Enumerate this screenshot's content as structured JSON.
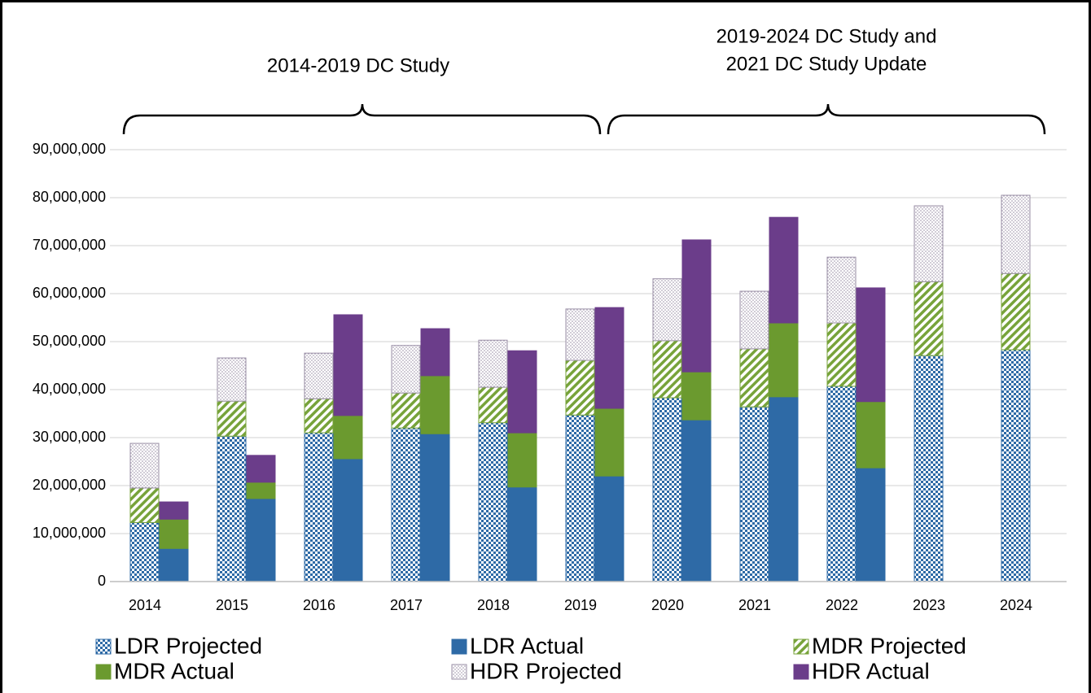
{
  "chart_data": {
    "type": "bar",
    "categories": [
      "2014",
      "2015",
      "2016",
      "2017",
      "2018",
      "2019",
      "2020",
      "2021",
      "2022",
      "2023",
      "2024"
    ],
    "series": [
      {
        "name": "LDR Projected",
        "color": "#2e6aa6",
        "pattern": "checker",
        "values": [
          12300000,
          30300000,
          31000000,
          32000000,
          33100000,
          34700000,
          38300000,
          36400000,
          40700000,
          47100000,
          48300000
        ]
      },
      {
        "name": "LDR Actual",
        "color": "#2e6aa6",
        "pattern": "solid",
        "values": [
          6900000,
          17300000,
          25600000,
          30800000,
          19700000,
          22000000,
          33700000,
          38500000,
          23700000,
          null,
          null
        ]
      },
      {
        "name": "MDR Projected",
        "color": "#77a33a",
        "pattern": "stripes",
        "values": [
          7200000,
          7300000,
          7100000,
          7300000,
          7400000,
          11400000,
          11900000,
          12100000,
          13200000,
          15400000,
          15900000
        ]
      },
      {
        "name": "MDR Actual",
        "color": "#6b9a2f",
        "pattern": "solid",
        "values": [
          6100000,
          3400000,
          9000000,
          12100000,
          11300000,
          14100000,
          10000000,
          15400000,
          13800000,
          null,
          null
        ]
      },
      {
        "name": "HDR Projected",
        "color": "#9a8fa6",
        "pattern": "dots",
        "values": [
          9300000,
          9000000,
          9500000,
          9900000,
          9800000,
          10700000,
          12900000,
          12000000,
          13700000,
          15800000,
          16300000
        ]
      },
      {
        "name": "HDR Actual",
        "color": "#6b3d8a",
        "pattern": "solid",
        "values": [
          3600000,
          5600000,
          21000000,
          9800000,
          17100000,
          21000000,
          27500000,
          22000000,
          23700000,
          null,
          null
        ]
      }
    ],
    "ylim": [
      0,
      90000000
    ],
    "yticks": [
      0,
      {
        "value": 10000000,
        "label": "10,000,000"
      },
      {
        "value": 20000000,
        "label": "20,000,000"
      },
      {
        "value": 30000000,
        "label": "30,000,000"
      },
      {
        "value": 40000000,
        "label": "40,000,000"
      },
      {
        "value": 50000000,
        "label": "50,000,000"
      },
      {
        "value": 60000000,
        "label": "60,000,000"
      },
      {
        "value": 70000000,
        "label": "70,000,000"
      },
      {
        "value": 80000000,
        "label": "80,000,000"
      },
      {
        "value": 90000000,
        "label": "90,000,000"
      }
    ],
    "grid": true,
    "legend": "bottom",
    "annotations": [
      "2014-2019 DC Study",
      "2019-2024 DC Study and",
      "2021 DC Study Update"
    ]
  }
}
